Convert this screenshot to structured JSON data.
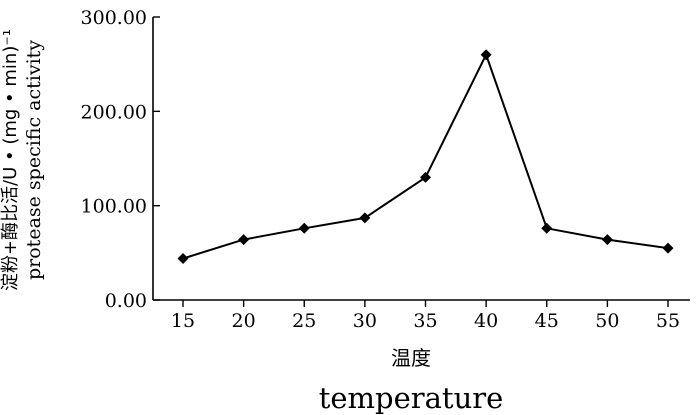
{
  "chart_data": {
    "type": "line",
    "x": [
      15,
      20,
      25,
      30,
      35,
      40,
      45,
      50,
      55
    ],
    "x_tick_labels": [
      "15",
      "20",
      "25",
      "30",
      "35",
      "40",
      "45",
      "50",
      "55"
    ],
    "series": [
      {
        "values": [
          44,
          64,
          76,
          87,
          130,
          260,
          76,
          64,
          55
        ]
      }
    ],
    "ylim": [
      0,
      300
    ],
    "y_ticks": [
      0,
      100,
      200,
      300
    ],
    "y_tick_labels": [
      "0.00",
      "100.00",
      "200.00",
      "300.00"
    ],
    "xlabel_zh": "温度",
    "xlabel_en": "temperature",
    "ylabel_zh": "淀粉+酶比活/U • (mg • min)⁻¹",
    "ylabel_en": "protease specific activity",
    "marker": "diamond",
    "grid": false,
    "legend": "none"
  }
}
